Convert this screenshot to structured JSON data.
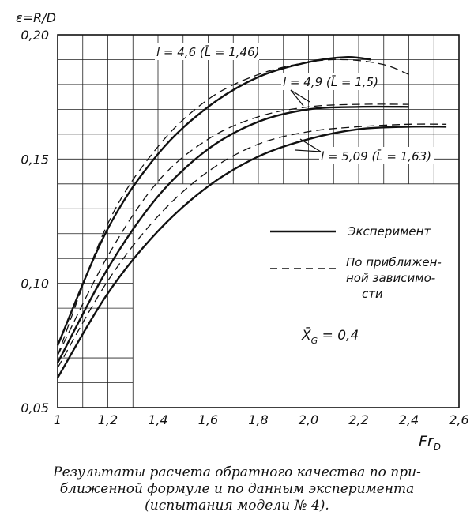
{
  "chart_data": {
    "type": "line",
    "ylabel": "ε=R/D",
    "xlabel": "Fr",
    "xlabel_sub": "D",
    "xlim": [
      1.0,
      2.6
    ],
    "ylim": [
      0.05,
      0.2
    ],
    "x_ticks": [
      1,
      1.2,
      1.4,
      1.6,
      1.8,
      2.0,
      2.2,
      2.4,
      2.6
    ],
    "x_tick_labels": [
      "1",
      "1,2",
      "1,4",
      "1,6",
      "1,8",
      "2,0",
      "2,2",
      "2,4",
      "2,6"
    ],
    "y_ticks": [
      0.05,
      0.1,
      0.15,
      0.2
    ],
    "y_tick_labels": [
      "0,05",
      "0,10",
      "0,15",
      "0,20"
    ],
    "grid": true,
    "series": [
      {
        "group": "l = 4,6 (L = 1,46)",
        "style": "solid",
        "x": [
          1.0,
          1.2,
          1.4,
          1.6,
          1.8,
          2.0,
          2.15,
          2.25
        ],
        "y": [
          0.075,
          0.122,
          0.152,
          0.171,
          0.183,
          0.189,
          0.191,
          0.19
        ]
      },
      {
        "group": "l = 4,6 (L = 1,46)",
        "style": "dashed",
        "x": [
          1.0,
          1.2,
          1.4,
          1.6,
          1.8,
          2.0,
          2.15,
          2.3,
          2.4
        ],
        "y": [
          0.071,
          0.124,
          0.155,
          0.174,
          0.184,
          0.189,
          0.19,
          0.188,
          0.184
        ]
      },
      {
        "group": "l = 4,9 (L = 1,5)",
        "style": "solid",
        "x": [
          1.0,
          1.2,
          1.4,
          1.6,
          1.8,
          2.0,
          2.2,
          2.4
        ],
        "y": [
          0.068,
          0.106,
          0.135,
          0.154,
          0.165,
          0.17,
          0.171,
          0.171
        ]
      },
      {
        "group": "l = 4,9 (L = 1,5)",
        "style": "dashed",
        "x": [
          1.0,
          1.2,
          1.4,
          1.6,
          1.8,
          2.0,
          2.2,
          2.4
        ],
        "y": [
          0.071,
          0.111,
          0.141,
          0.158,
          0.167,
          0.171,
          0.172,
          0.172
        ]
      },
      {
        "group": "l = 5,09 (L = 1,63)",
        "style": "solid",
        "x": [
          1.0,
          1.2,
          1.4,
          1.6,
          1.8,
          2.0,
          2.2,
          2.4,
          2.55
        ],
        "y": [
          0.062,
          0.096,
          0.121,
          0.139,
          0.151,
          0.158,
          0.162,
          0.163,
          0.163
        ]
      },
      {
        "group": "l = 5,09 (L = 1,63)",
        "style": "dashed",
        "x": [
          1.0,
          1.2,
          1.4,
          1.6,
          1.8,
          2.0,
          2.2,
          2.4,
          2.55
        ],
        "y": [
          0.066,
          0.101,
          0.127,
          0.145,
          0.156,
          0.161,
          0.163,
          0.164,
          0.164
        ]
      }
    ],
    "annotations": [
      {
        "text": "l = 4,6 (L = 1,46)"
      },
      {
        "text": "l = 4,9 (L = 1,5)"
      },
      {
        "text": "l = 5,09 (L = 1,63)"
      },
      {
        "text": "X_G = 0,4"
      }
    ],
    "legend": [
      {
        "style": "solid",
        "label": "Эксперимент"
      },
      {
        "style": "dashed",
        "label_lines": [
          "По приближен-",
          "ной зависимо-",
          "сти"
        ]
      }
    ],
    "legend_position": "right"
  },
  "annotations_text": {
    "a1": "l = 4,6 (L̄ = 1,46)",
    "a2": "l = 4,9 (L̄ = 1,5)",
    "a3": "l = 5,09 (L̄ = 1,63)",
    "xg": "X̄",
    "xg_sub": "G",
    "xg_val": " = 0,4"
  },
  "legend_text": {
    "solid": "Эксперимент",
    "dashed_1": "По приближен-",
    "dashed_2": "ной зависимо-",
    "dashed_3": "сти"
  },
  "caption": {
    "line1": "Результаты расчета обратного качества по при-",
    "line2": "ближенной формуле и по данным эксперимента",
    "line3": "(испытания модели № 4)."
  }
}
